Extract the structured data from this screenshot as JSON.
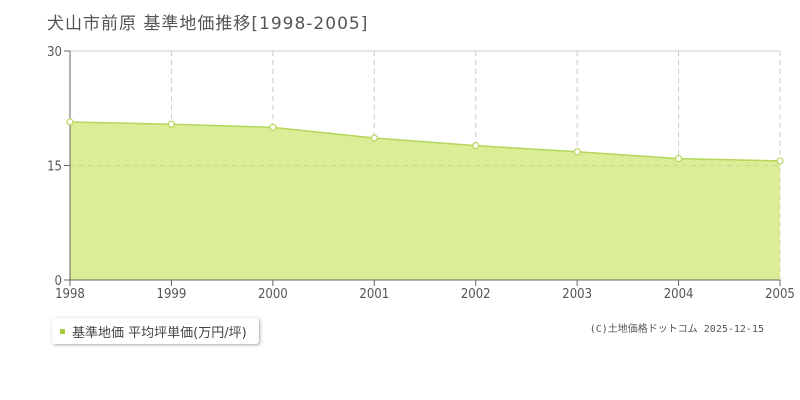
{
  "title": "犬山市前原 基準地価推移[1998-2005]",
  "legend": {
    "label": "基準地価 平均坪単価(万円/坪)"
  },
  "copyright": "(C)土地価格ドットコム 2025-12-15",
  "colors": {
    "area_fill": "#dbed96",
    "line": "#b5d65a",
    "marker_fill": "#ffffff",
    "marker_stroke": "#b5d65a",
    "grid": "#cccccc",
    "axis": "#666666",
    "legend_swatch": "#a9c93f"
  },
  "chart_data": {
    "type": "area",
    "title": "犬山市前原 基準地価推移[1998-2005]",
    "xlabel": "",
    "ylabel": "",
    "x": [
      "1998",
      "1999",
      "2000",
      "2001",
      "2002",
      "2003",
      "2004",
      "2005"
    ],
    "series": [
      {
        "name": "基準地価 平均坪単価(万円/坪)",
        "values": [
          20.7,
          20.4,
          20.0,
          18.6,
          17.6,
          16.8,
          15.9,
          15.6
        ]
      }
    ],
    "yticks": [
      "0",
      "15",
      "30"
    ],
    "ylim": [
      0,
      30
    ],
    "grid": true,
    "legend_position": "bottom-left"
  }
}
